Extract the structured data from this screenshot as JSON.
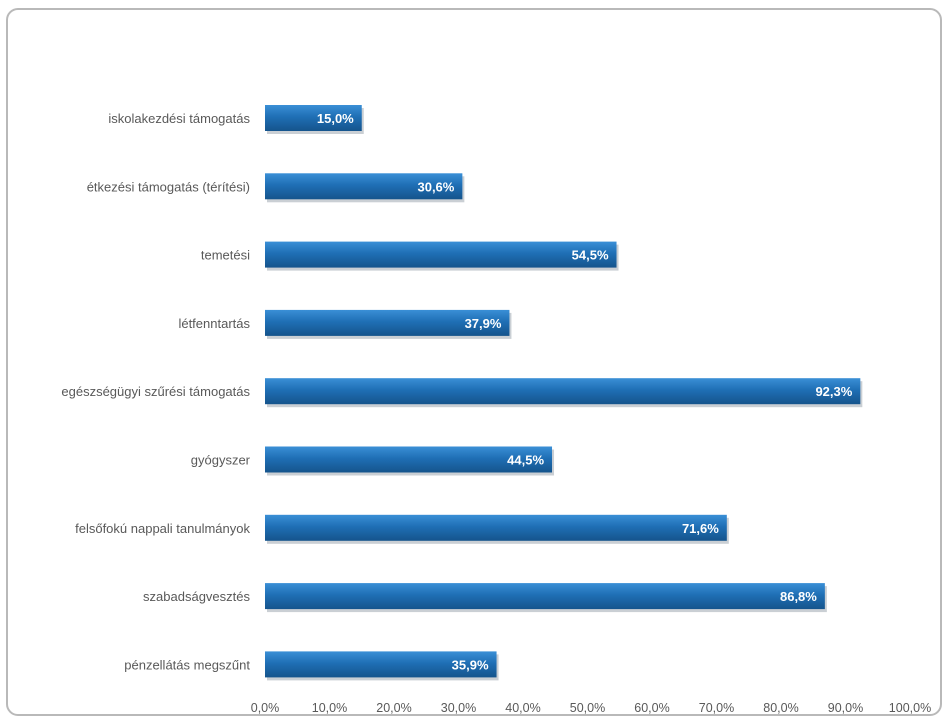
{
  "chart_data": {
    "type": "bar",
    "orientation": "horizontal",
    "categories": [
      "iskolakezdési támogatás",
      "étkezési támogatás (térítési)",
      "temetési",
      "létfenntartás",
      "egészségügyi szűrési támogatás",
      "gyógyszer",
      "felsőfokú nappali tanulmányok",
      "szabadságvesztés",
      "pénzellátás megszűnt"
    ],
    "values": [
      15.0,
      30.6,
      54.5,
      37.9,
      92.3,
      44.5,
      71.6,
      86.8,
      35.9
    ],
    "value_labels": [
      "15,0%",
      "30,6%",
      "54,5%",
      "37,9%",
      "92,3%",
      "44,5%",
      "71,6%",
      "86,8%",
      "35,9%"
    ],
    "x_ticks": [
      "0,0%",
      "10,0%",
      "20,0%",
      "30,0%",
      "40,0%",
      "50,0%",
      "60,0%",
      "70,0%",
      "80,0%",
      "90,0%",
      "100,0%"
    ],
    "xlim": [
      0,
      100
    ],
    "title": "",
    "xlabel": "",
    "ylabel": "",
    "grid": false,
    "legend": "none",
    "bar_color": "#1f6fb5",
    "bar_color_dark": "#15548c",
    "bar_color_light": "#3a8fd6"
  }
}
